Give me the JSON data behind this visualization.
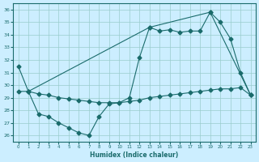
{
  "xlabel": "Humidex (Indice chaleur)",
  "background_color": "#cceeff",
  "line_color": "#1a6b6b",
  "grid_color": "#99cccc",
  "xlim": [
    -0.5,
    23.5
  ],
  "ylim": [
    25.5,
    36.5
  ],
  "xticks": [
    0,
    1,
    2,
    3,
    4,
    5,
    6,
    7,
    8,
    9,
    10,
    11,
    12,
    13,
    14,
    15,
    16,
    17,
    18,
    19,
    20,
    21,
    22,
    23
  ],
  "yticks": [
    26,
    27,
    28,
    29,
    30,
    31,
    32,
    33,
    34,
    35,
    36
  ],
  "series1_x": [
    0,
    1,
    2,
    3,
    4,
    5,
    6,
    7,
    8,
    9,
    10,
    11,
    12,
    13,
    14,
    15,
    16,
    17,
    18,
    19,
    20,
    21,
    22,
    23
  ],
  "series1_y": [
    31.5,
    29.5,
    27.7,
    27.5,
    27.0,
    26.6,
    26.2,
    26.0,
    27.5,
    28.5,
    28.6,
    29.0,
    32.2,
    34.6,
    34.3,
    34.4,
    34.2,
    34.3,
    34.3,
    35.8,
    35.0,
    33.7,
    31.0,
    29.2
  ],
  "series2_x": [
    1,
    13,
    19,
    23
  ],
  "series2_y": [
    29.5,
    34.6,
    35.8,
    29.2
  ],
  "series3_x": [
    0,
    1,
    2,
    3,
    4,
    5,
    6,
    7,
    8,
    9,
    10,
    11,
    12,
    13,
    14,
    15,
    16,
    17,
    18,
    19,
    20,
    21,
    22,
    23
  ],
  "series3_y": [
    29.5,
    29.5,
    29.3,
    29.2,
    29.0,
    28.9,
    28.8,
    28.7,
    28.6,
    28.6,
    28.6,
    28.7,
    28.8,
    29.0,
    29.1,
    29.2,
    29.3,
    29.4,
    29.5,
    29.6,
    29.7,
    29.7,
    29.8,
    29.2
  ]
}
